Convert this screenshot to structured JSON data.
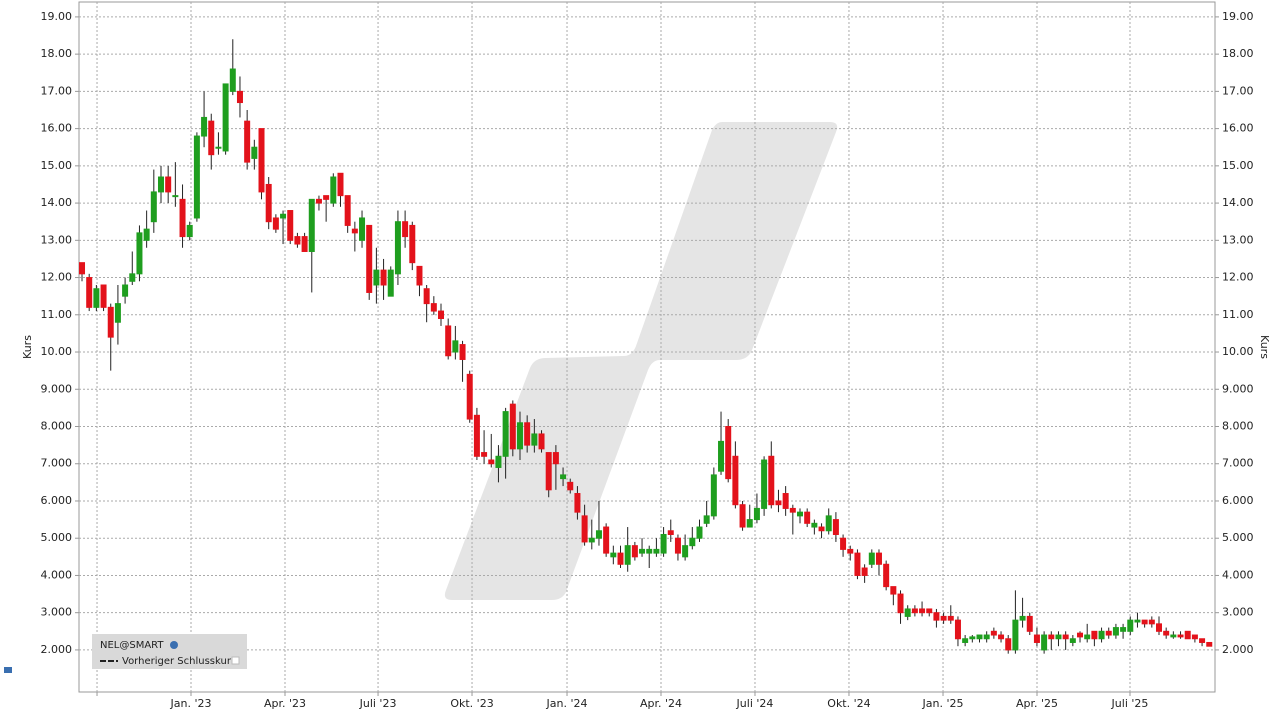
{
  "chart_data": {
    "type": "candlestick",
    "y_label": "Kurs",
    "legend": [
      "NEL@SMART",
      "Vorheriger Schlusskurs"
    ],
    "xlim": [
      -0.42,
      157.8
    ],
    "xticks": [
      {
        "value": 2.09,
        "label": null
      },
      {
        "value": 15.18,
        "label": "Jan. '23"
      },
      {
        "value": 28.27,
        "label": "Apr. '23"
      },
      {
        "value": 41.23,
        "label": "Juli '23"
      },
      {
        "value": 54.32,
        "label": "Okt. '23"
      },
      {
        "value": 67.55,
        "label": "Jan. '24"
      },
      {
        "value": 80.64,
        "label": "Apr. '24"
      },
      {
        "value": 93.73,
        "label": "Juli '24"
      },
      {
        "value": 106.82,
        "label": "Okt. '24"
      },
      {
        "value": 119.92,
        "label": "Jan. '25"
      },
      {
        "value": 133.01,
        "label": "Apr. '25"
      },
      {
        "value": 145.96,
        "label": "Juli '25"
      }
    ],
    "ylim": [
      0.87,
      19.4
    ],
    "yticks": [
      {
        "value": 19,
        "label": "19.00"
      },
      {
        "value": 18,
        "label": "18.00"
      },
      {
        "value": 17,
        "label": "17.00"
      },
      {
        "value": 16,
        "label": "16.00"
      },
      {
        "value": 15,
        "label": "15.00"
      },
      {
        "value": 14,
        "label": "14.00"
      },
      {
        "value": 13,
        "label": "13.00"
      },
      {
        "value": 12,
        "label": "12.00"
      },
      {
        "value": 11,
        "label": "11.00"
      },
      {
        "value": 10,
        "label": "10.00"
      },
      {
        "value": 9,
        "label": "9.000"
      },
      {
        "value": 8,
        "label": "8.000"
      },
      {
        "value": 7,
        "label": "7.000"
      },
      {
        "value": 6,
        "label": "6.000"
      },
      {
        "value": 5,
        "label": "5.000"
      },
      {
        "value": 4,
        "label": "4.000"
      },
      {
        "value": 3,
        "label": "3.000"
      },
      {
        "value": 2,
        "label": "2.000"
      }
    ],
    "grid": true,
    "series": [
      {
        "name": "NEL@SMART",
        "up_color": "#1f9e1f",
        "down_color": "#e3121b",
        "open": [
          12.4,
          12.0,
          11.2,
          11.8,
          11.2,
          10.8,
          11.5,
          11.9,
          12.1,
          13.0,
          13.5,
          14.3,
          14.7,
          14.2,
          14.1,
          13.1,
          13.6,
          15.8,
          16.2,
          15.5,
          15.4,
          17.0,
          17.0,
          16.2,
          15.2,
          16.0,
          14.5,
          13.6,
          13.6,
          13.8,
          13.1,
          13.1,
          12.7,
          14.1,
          14.2,
          14.0,
          14.8,
          14.2,
          13.3,
          13.0,
          13.4,
          11.8,
          12.2,
          11.5,
          12.1,
          13.5,
          13.4,
          12.3,
          11.7,
          11.3,
          11.1,
          10.7,
          10.0,
          10.2,
          9.4,
          8.3,
          7.3,
          7.1,
          6.9,
          7.2,
          8.6,
          7.4,
          8.1,
          7.5,
          7.8,
          7.3,
          7.3,
          6.6,
          6.5,
          6.2,
          5.6,
          4.9,
          5.0,
          5.3,
          4.5,
          4.6,
          4.3,
          4.8,
          4.6,
          4.6,
          4.6,
          4.6,
          5.2,
          5.0,
          4.5,
          4.8,
          5.0,
          5.4,
          5.6,
          6.8,
          8.0,
          7.2,
          5.9,
          5.3,
          5.5,
          5.8,
          7.2,
          6.0,
          6.2,
          5.8,
          5.6,
          5.7,
          5.3,
          5.3,
          5.2,
          5.5,
          5.0,
          4.7,
          4.6,
          4.2,
          4.3,
          4.6,
          4.3,
          3.7,
          3.5,
          2.9,
          3.1,
          3.1,
          3.1,
          3.0,
          2.9,
          2.9,
          2.8,
          2.2,
          2.3,
          2.3,
          2.3,
          2.5,
          2.4,
          2.3,
          2.0,
          2.8,
          2.9,
          2.4,
          2.0,
          2.4,
          2.3,
          2.4,
          2.2,
          2.45,
          2.3,
          2.5,
          2.3,
          2.5,
          2.4,
          2.5,
          2.5,
          2.75,
          2.8,
          2.8,
          2.7,
          2.5,
          2.35,
          2.4,
          2.5,
          2.4,
          2.3,
          2.2
        ],
        "high": [
          12.4,
          12.1,
          11.8,
          11.8,
          11.3,
          11.8,
          12.0,
          12.7,
          13.4,
          13.8,
          14.9,
          15.0,
          15.0,
          15.1,
          14.5,
          13.5,
          15.9,
          17.0,
          16.4,
          15.9,
          17.2,
          18.4,
          17.4,
          16.5,
          15.7,
          16.0,
          14.7,
          13.7,
          13.8,
          13.8,
          13.2,
          13.2,
          14.1,
          14.2,
          14.2,
          14.8,
          14.8,
          14.2,
          13.5,
          13.8,
          13.4,
          12.8,
          12.5,
          12.3,
          13.8,
          13.8,
          13.5,
          12.3,
          11.8,
          11.5,
          11.3,
          10.9,
          10.7,
          10.3,
          9.5,
          8.5,
          7.9,
          7.8,
          7.5,
          8.5,
          8.7,
          8.4,
          8.3,
          8.2,
          7.9,
          7.3,
          7.5,
          6.9,
          6.6,
          6.4,
          5.9,
          5.5,
          6.0,
          5.4,
          4.8,
          4.8,
          5.3,
          4.9,
          5.0,
          4.8,
          5.0,
          5.3,
          5.5,
          5.1,
          5.1,
          5.3,
          5.5,
          6.0,
          6.9,
          8.4,
          8.2,
          7.6,
          6.0,
          5.9,
          6.2,
          7.2,
          7.6,
          6.3,
          6.4,
          5.9,
          5.8,
          5.8,
          5.5,
          5.4,
          5.8,
          5.7,
          5.1,
          4.8,
          4.7,
          4.3,
          4.7,
          4.7,
          4.4,
          3.7,
          3.6,
          3.2,
          3.2,
          3.3,
          3.1,
          3.1,
          3.0,
          3.2,
          2.9,
          2.4,
          2.4,
          2.4,
          2.5,
          2.6,
          2.5,
          2.4,
          3.6,
          3.4,
          3.0,
          2.6,
          2.5,
          2.5,
          2.5,
          2.5,
          2.4,
          2.5,
          2.7,
          2.5,
          2.6,
          2.6,
          2.7,
          2.7,
          2.9,
          3.0,
          2.8,
          2.9,
          2.9,
          2.6,
          2.5,
          2.5,
          2.5,
          2.4,
          2.3,
          2.2
        ],
        "low": [
          11.9,
          11.1,
          11.1,
          11.1,
          9.5,
          10.2,
          11.3,
          11.8,
          11.9,
          12.8,
          13.2,
          14.0,
          14.0,
          13.9,
          12.8,
          13.0,
          13.5,
          15.5,
          14.9,
          15.3,
          15.3,
          16.9,
          16.3,
          14.9,
          14.9,
          14.1,
          13.3,
          13.2,
          12.9,
          12.9,
          12.8,
          12.7,
          11.6,
          13.8,
          13.5,
          13.9,
          13.9,
          13.2,
          12.7,
          12.8,
          11.4,
          11.3,
          11.4,
          11.5,
          11.8,
          12.8,
          12.2,
          11.5,
          10.8,
          11.0,
          10.7,
          9.8,
          9.8,
          9.2,
          8.1,
          7.1,
          7.0,
          6.9,
          6.5,
          6.6,
          7.2,
          7.1,
          7.3,
          7.3,
          7.3,
          6.1,
          6.3,
          6.4,
          6.2,
          5.5,
          4.8,
          4.7,
          4.8,
          4.5,
          4.3,
          4.2,
          4.1,
          4.4,
          4.5,
          4.2,
          4.5,
          4.5,
          4.9,
          4.4,
          4.4,
          4.7,
          4.9,
          5.3,
          5.5,
          6.7,
          6.5,
          5.8,
          5.2,
          5.3,
          5.4,
          5.6,
          5.8,
          5.7,
          5.6,
          5.1,
          5.4,
          5.3,
          5.1,
          5.0,
          5.1,
          4.9,
          4.5,
          4.4,
          3.9,
          3.8,
          4.2,
          4.0,
          3.6,
          3.2,
          2.7,
          2.8,
          2.9,
          2.9,
          2.9,
          2.6,
          2.7,
          2.7,
          2.1,
          2.1,
          2.2,
          2.2,
          2.2,
          2.3,
          2.2,
          1.9,
          1.9,
          2.6,
          2.4,
          2.1,
          1.9,
          2.0,
          2.1,
          2.0,
          2.1,
          2.2,
          2.2,
          2.1,
          2.2,
          2.3,
          2.3,
          2.3,
          2.4,
          2.6,
          2.6,
          2.6,
          2.4,
          2.3,
          2.3,
          2.3,
          2.3,
          2.2,
          2.1,
          2.1
        ],
        "close": [
          12.1,
          11.2,
          11.7,
          11.2,
          10.4,
          11.3,
          11.8,
          12.1,
          13.2,
          13.3,
          14.3,
          14.7,
          14.3,
          14.2,
          13.1,
          13.4,
          15.8,
          16.3,
          15.3,
          15.5,
          17.2,
          17.6,
          16.7,
          15.1,
          15.5,
          14.3,
          13.5,
          13.3,
          13.7,
          13.0,
          12.9,
          12.7,
          14.1,
          14.0,
          14.1,
          14.7,
          14.2,
          13.4,
          13.2,
          13.6,
          11.6,
          12.2,
          11.8,
          12.2,
          13.5,
          13.1,
          12.4,
          11.8,
          11.3,
          11.1,
          10.9,
          9.9,
          10.3,
          9.8,
          8.2,
          7.2,
          7.2,
          7.0,
          7.2,
          8.4,
          7.4,
          8.1,
          7.5,
          7.8,
          7.4,
          6.3,
          7.0,
          6.7,
          6.3,
          5.7,
          4.9,
          5.0,
          5.2,
          4.6,
          4.6,
          4.3,
          4.8,
          4.5,
          4.7,
          4.7,
          4.7,
          5.1,
          5.1,
          4.6,
          4.8,
          5.0,
          5.3,
          5.6,
          6.7,
          7.6,
          6.6,
          5.9,
          5.3,
          5.5,
          5.8,
          7.1,
          5.9,
          5.9,
          5.8,
          5.7,
          5.7,
          5.4,
          5.4,
          5.2,
          5.6,
          5.1,
          4.7,
          4.6,
          4.0,
          4.0,
          4.6,
          4.3,
          3.7,
          3.5,
          3.0,
          3.1,
          3.0,
          3.0,
          3.0,
          2.8,
          2.8,
          2.8,
          2.3,
          2.3,
          2.35,
          2.4,
          2.4,
          2.4,
          2.3,
          2.0,
          2.8,
          2.9,
          2.5,
          2.2,
          2.4,
          2.3,
          2.4,
          2.3,
          2.3,
          2.35,
          2.4,
          2.3,
          2.5,
          2.4,
          2.6,
          2.6,
          2.8,
          2.8,
          2.7,
          2.7,
          2.5,
          2.4,
          2.4,
          2.35,
          2.3,
          2.3,
          2.2,
          2.1
        ]
      }
    ]
  }
}
